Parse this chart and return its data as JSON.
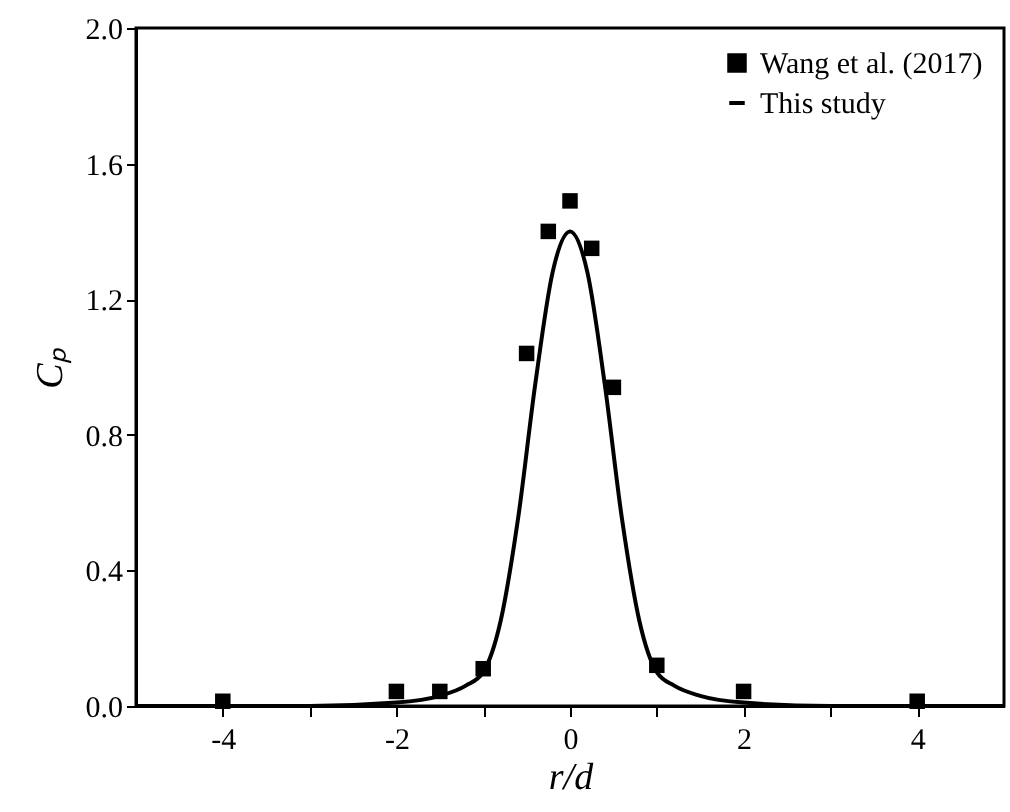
{
  "chart_data": {
    "type": "scatter",
    "xlabel": "r/d",
    "ylabel": "Cₚ",
    "xlim": [
      -5,
      5
    ],
    "ylim": [
      0,
      2
    ],
    "xticks": [
      -4,
      {
        "value": -3,
        "label": null
      },
      -2,
      {
        "value": -1,
        "label": null
      },
      0,
      {
        "value": 1,
        "label": null
      },
      2,
      {
        "value": 3,
        "label": null
      },
      4
    ],
    "yticks": [
      {
        "value": 0,
        "label": "0.0"
      },
      0.4,
      0.8,
      1.2,
      1.6,
      {
        "value": 2.0,
        "label": "2.0"
      }
    ],
    "grid": false,
    "legend": "top right",
    "series": [
      {
        "name": "Wang et al. (2017)",
        "marker": "square",
        "color": "#000000",
        "x": [
          -4,
          -2,
          -1.5,
          -1,
          -0.5,
          -0.25,
          0,
          0.25,
          0.5,
          1,
          2,
          4
        ],
        "values": [
          0.014,
          0.043,
          0.043,
          0.11,
          1.04,
          1.4,
          1.49,
          1.35,
          0.94,
          0.12,
          0.043,
          0.014
        ]
      },
      {
        "name": "This study",
        "type": "line",
        "marker": "none",
        "line_style": "solid",
        "color": "#000000",
        "x": [
          -5,
          -3,
          -2,
          -1.5,
          -1.2,
          -1,
          -0.8,
          -0.6,
          -0.4,
          -0.2,
          0,
          0.2,
          0.4,
          0.6,
          0.8,
          1,
          1.2,
          1.5,
          2,
          3,
          5
        ],
        "values": [
          0,
          0,
          0.01,
          0.03,
          0.06,
          0.1,
          0.25,
          0.55,
          0.95,
          1.28,
          1.4,
          1.28,
          0.95,
          0.55,
          0.25,
          0.1,
          0.06,
          0.03,
          0.01,
          0,
          0
        ]
      }
    ]
  }
}
